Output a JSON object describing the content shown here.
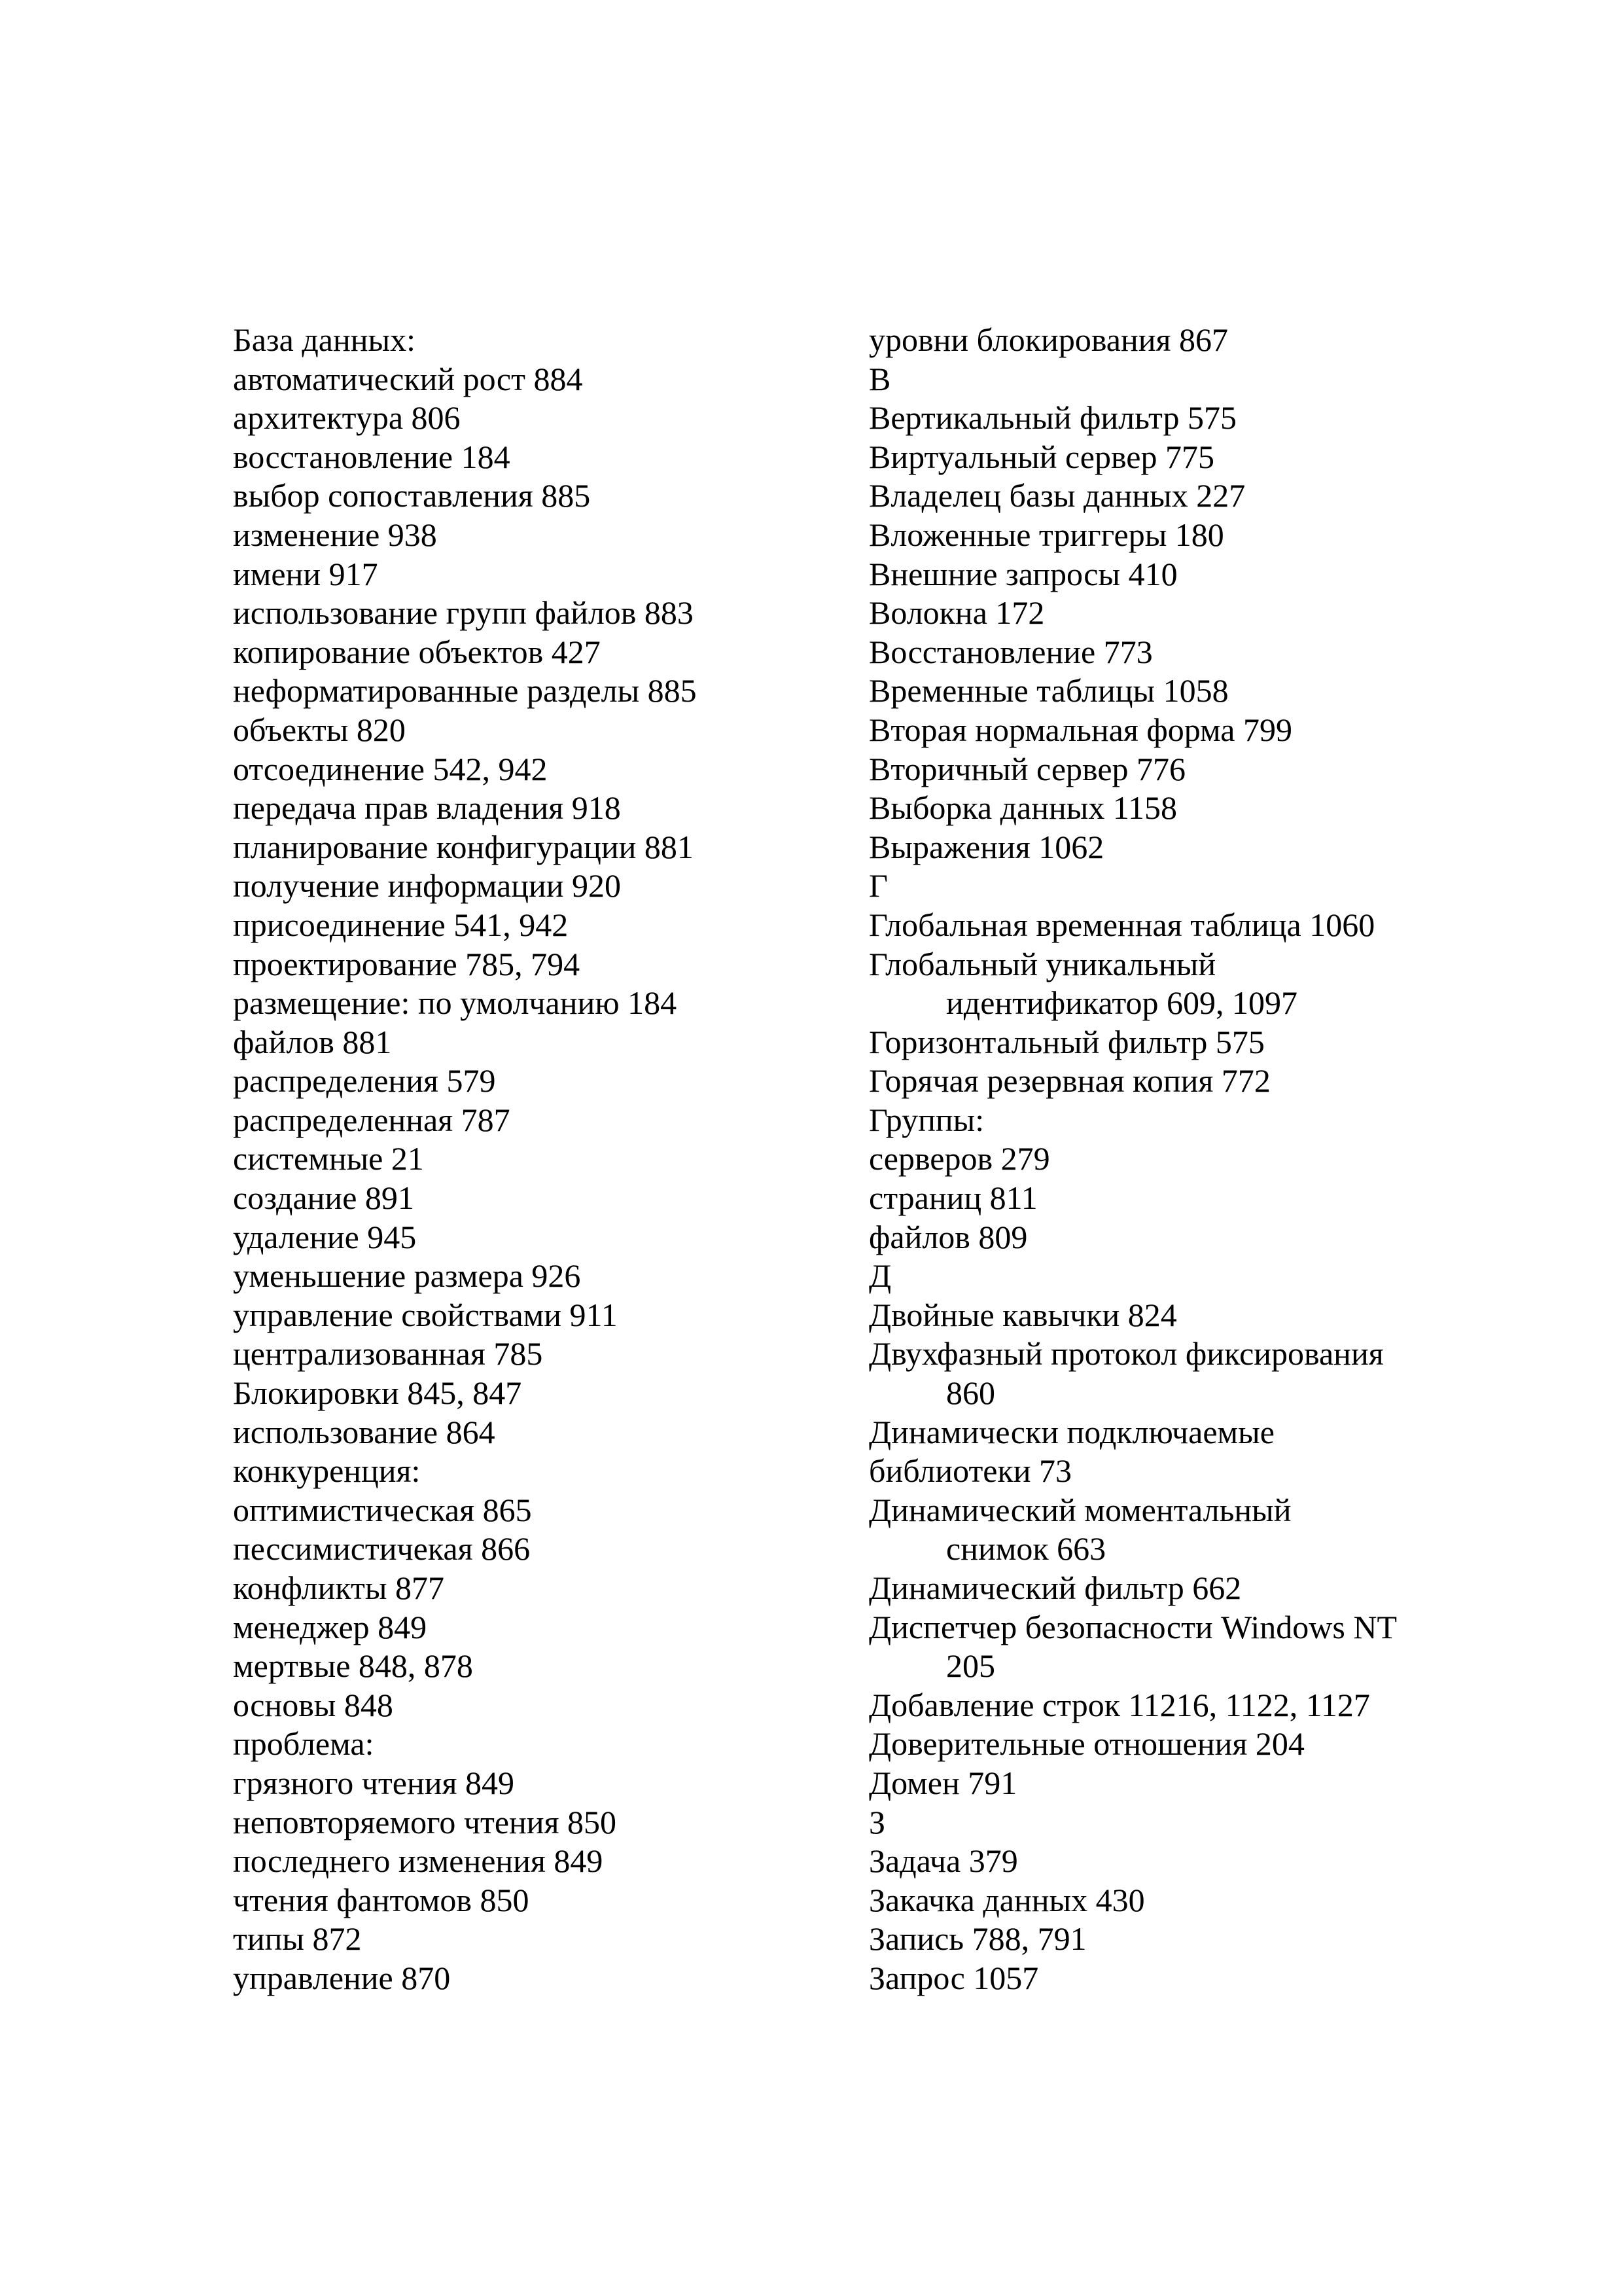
{
  "index": {
    "left_column": [
      {
        "text": "База данных:"
      },
      {
        "text": "автоматический рост 884"
      },
      {
        "text": "архитектура 806"
      },
      {
        "text": "восстановление 184"
      },
      {
        "text": "выбор сопоставления 885"
      },
      {
        "text": "изменение 938"
      },
      {
        "text": "имени 917"
      },
      {
        "text": "использование групп файлов 883"
      },
      {
        "text": "копирование объектов 427"
      },
      {
        "text": "неформатированные разделы 885"
      },
      {
        "text": "объекты 820"
      },
      {
        "text": "отсоединение 542, 942"
      },
      {
        "text": "передача прав владения 918"
      },
      {
        "text": "планирование конфигурации 881"
      },
      {
        "text": "получение информации 920"
      },
      {
        "text": "присоединение 541, 942"
      },
      {
        "text": "проектирование 785, 794"
      },
      {
        "text": "размещение: по умолчанию 184"
      },
      {
        "text": "файлов 881"
      },
      {
        "text": "распределения 579"
      },
      {
        "text": "распределенная 787"
      },
      {
        "text": "системные 21"
      },
      {
        "text": "создание 891"
      },
      {
        "text": "удаление 945"
      },
      {
        "text": "уменьшение размера 926"
      },
      {
        "text": "управление свойствами 911"
      },
      {
        "text": "централизованная 785"
      },
      {
        "text": "Блокировки 845, 847"
      },
      {
        "text": "использование 864"
      },
      {
        "text": "конкуренция:"
      },
      {
        "text": "оптимистическая 865"
      },
      {
        "text": "пессимистичекая 866"
      },
      {
        "text": "конфликты 877"
      },
      {
        "text": "менеджер 849"
      },
      {
        "text": "мертвые 848, 878"
      },
      {
        "text": "основы 848"
      },
      {
        "text": "проблема:"
      },
      {
        "text": "грязного чтения 849"
      },
      {
        "text": "неповторяемого чтения 850"
      },
      {
        "text": "последнего изменения 849"
      },
      {
        "text": "чтения фантомов 850"
      },
      {
        "text": "типы 872"
      },
      {
        "text": "управление 870"
      }
    ],
    "right_column": [
      {
        "text": "уровни блокирования 867"
      },
      {
        "text": "В"
      },
      {
        "text": "Вертикальный фильтр 575"
      },
      {
        "text": "Виртуальный сервер 775"
      },
      {
        "text": "Владелец базы данных 227"
      },
      {
        "text": "Вложенные триггеры 180"
      },
      {
        "text": "Внешние запросы 410"
      },
      {
        "text": "Волокна 172"
      },
      {
        "text": "Восстановление 773"
      },
      {
        "text": "Временные таблицы 1058"
      },
      {
        "text": "Вторая нормальная форма 799"
      },
      {
        "text": "Вторичный сервер 776"
      },
      {
        "text": "Выборка данных 1158"
      },
      {
        "text": "Выражения 1062"
      },
      {
        "text": "Г"
      },
      {
        "text": "Глобальная временная таблица 1060"
      },
      {
        "text": "Глобальный уникальный"
      },
      {
        "text": "идентификатор 609, 1097",
        "indent": true
      },
      {
        "text": "Горизонтальный фильтр 575"
      },
      {
        "text": "Горячая резервная копия 772"
      },
      {
        "text": "Группы:"
      },
      {
        "text": "серверов 279"
      },
      {
        "text": "страниц 811"
      },
      {
        "text": "файлов 809"
      },
      {
        "text": "Д"
      },
      {
        "text": "Двойные кавычки 824"
      },
      {
        "text": "Двухфазный протокол фиксирования"
      },
      {
        "text": "860",
        "indent": true
      },
      {
        "text": "Динамически подключаемые"
      },
      {
        "text": "библиотеки 73"
      },
      {
        "text": "Динамический моментальный"
      },
      {
        "text": "снимок 663",
        "indent": true
      },
      {
        "text": "Динамический фильтр 662"
      },
      {
        "text": "Диспетчер безопасности Windows NT"
      },
      {
        "text": "205",
        "indent": true
      },
      {
        "text": "Добавление строк 11216, 1122, 1127"
      },
      {
        "text": "Доверительные отношения 204"
      },
      {
        "text": "Домен 791"
      },
      {
        "text": "З"
      },
      {
        "text": "Задача 379"
      },
      {
        "text": "Закачка данных 430"
      },
      {
        "text": "Запись 788, 791"
      },
      {
        "text": "Запрос 1057"
      }
    ]
  }
}
